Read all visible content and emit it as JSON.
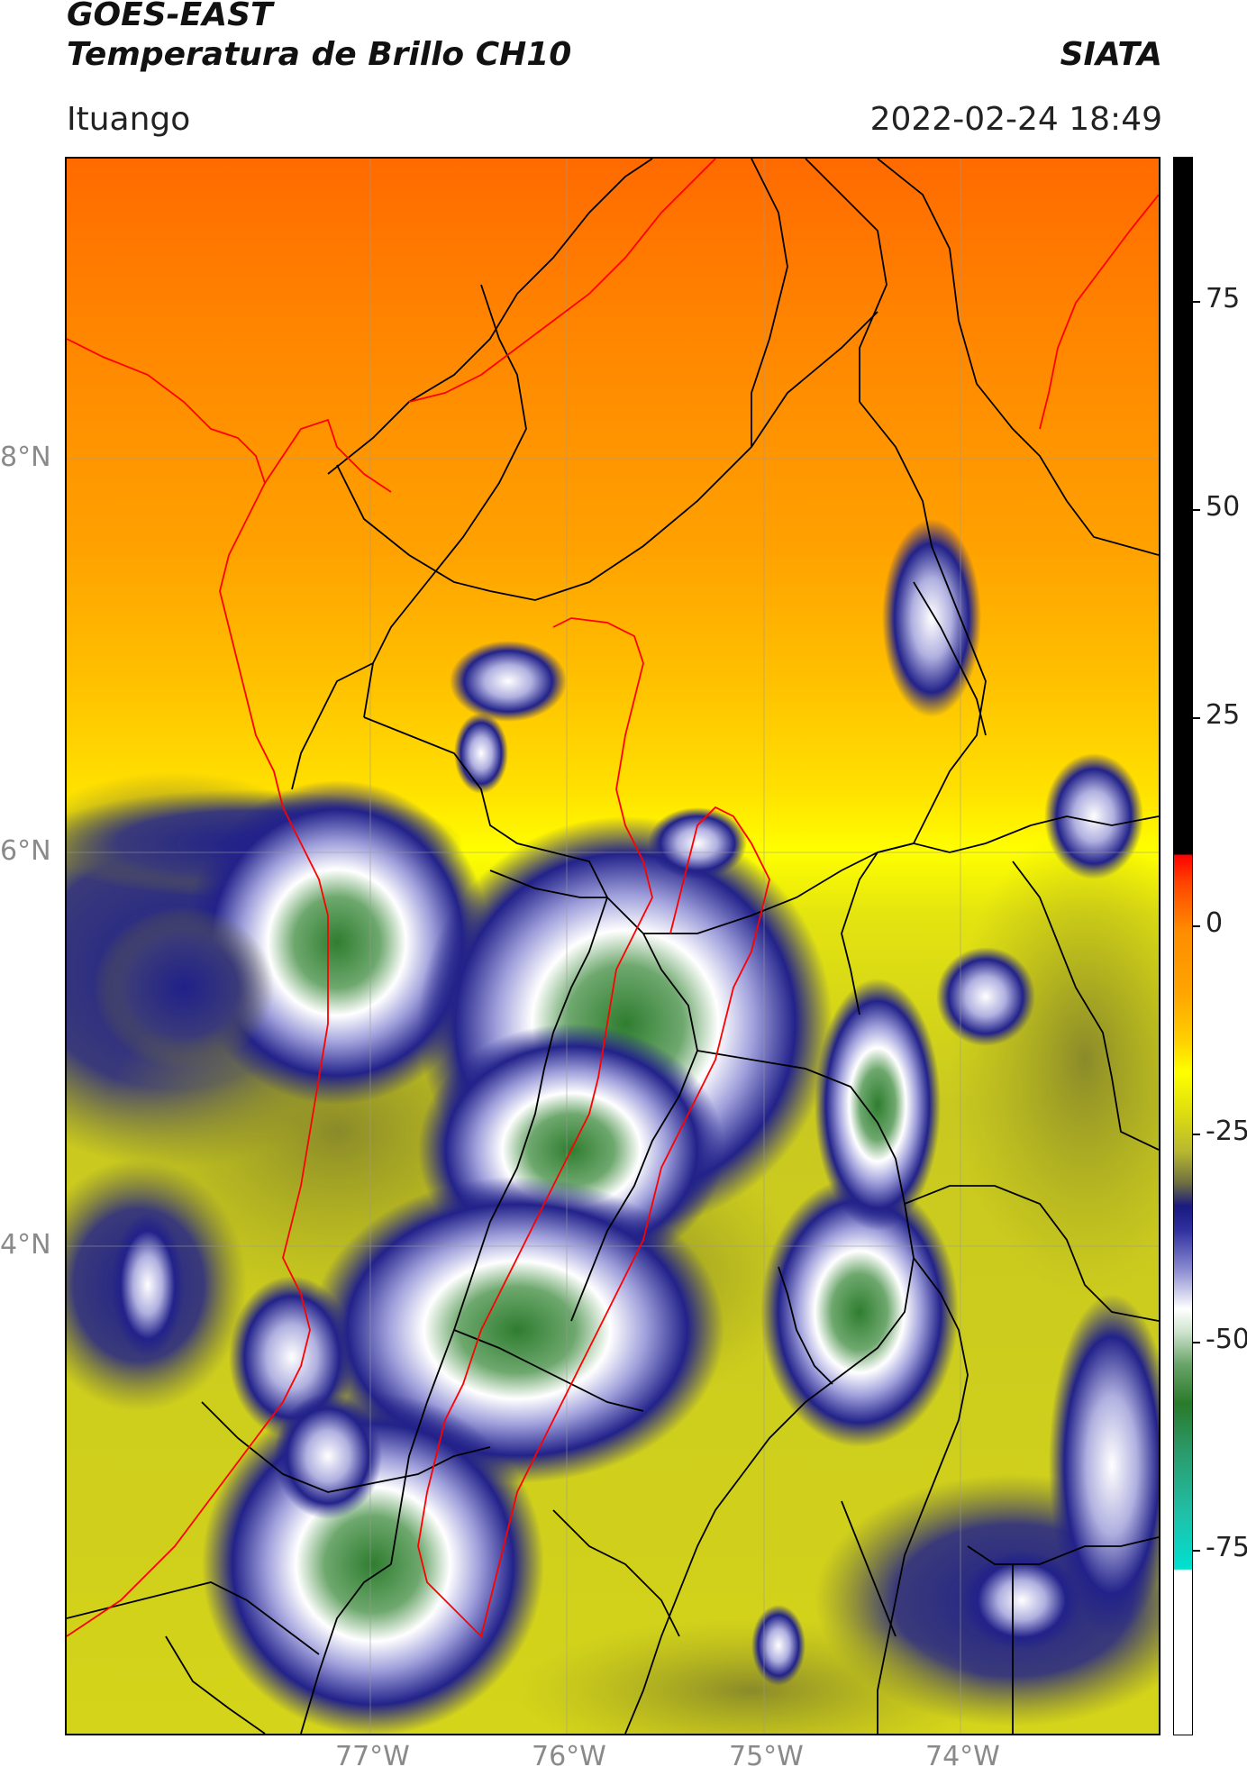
{
  "header": {
    "satellite": "GOES-EAST",
    "product": "Temperatura de Brillo CH10",
    "agency": "SIATA",
    "location": "Ituango",
    "timestamp": "2022-02-24 18:49"
  },
  "map": {
    "lat_labels": [
      {
        "label": "8°N",
        "lat": 8
      },
      {
        "label": "6°N",
        "lat": 6
      },
      {
        "label": "4°N",
        "lat": 4
      }
    ],
    "lon_labels": [
      {
        "label": "77°W",
        "lon": -77
      },
      {
        "label": "76°W",
        "lon": -76
      },
      {
        "label": "75°W",
        "lon": -75
      },
      {
        "label": "74°W",
        "lon": -74
      }
    ],
    "colors": {
      "coastline": "#ff0000",
      "boundaries": "#000000",
      "gridlines": "#9a9a9a"
    }
  },
  "colorbar": {
    "ticks": [
      "75",
      "50",
      "25",
      "0",
      "-25",
      "-50",
      "-75"
    ],
    "tick_values": [
      75,
      50,
      25,
      0,
      -25,
      -50,
      -75
    ],
    "range": [
      -90,
      90
    ]
  }
}
